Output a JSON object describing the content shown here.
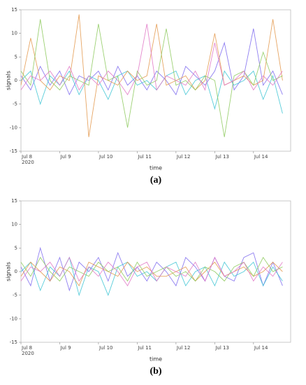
{
  "chart_data": [
    {
      "type": "line",
      "caption": "(a)",
      "xlabel": "time",
      "ylabel": "signals",
      "x": [
        "2020-07-08T00:00",
        "2020-07-08T06:00",
        "2020-07-08T12:00",
        "2020-07-08T18:00",
        "2020-07-09T00:00",
        "2020-07-09T06:00",
        "2020-07-09T12:00",
        "2020-07-09T18:00",
        "2020-07-10T00:00",
        "2020-07-10T06:00",
        "2020-07-10T12:00",
        "2020-07-10T18:00",
        "2020-07-11T00:00",
        "2020-07-11T06:00",
        "2020-07-11T12:00",
        "2020-07-11T18:00",
        "2020-07-12T00:00",
        "2020-07-12T06:00",
        "2020-07-12T12:00",
        "2020-07-12T18:00",
        "2020-07-13T00:00",
        "2020-07-13T06:00",
        "2020-07-13T12:00",
        "2020-07-13T18:00",
        "2020-07-14T00:00",
        "2020-07-14T06:00",
        "2020-07-14T12:00",
        "2020-07-14T18:00"
      ],
      "series": [
        {
          "color": "#7b68ee",
          "values": [
            1,
            -2,
            3,
            -1,
            2,
            -3,
            1,
            0,
            2,
            -2,
            3,
            -1,
            1,
            -2,
            2,
            0,
            -3,
            3,
            1,
            -1,
            2,
            8,
            -2,
            1,
            11,
            -1,
            2,
            -3
          ]
        },
        {
          "color": "#3cc4d4",
          "values": [
            0,
            2,
            -5,
            1,
            -1,
            2,
            -3,
            1,
            0,
            -4,
            1,
            2,
            -1,
            0,
            -2,
            1,
            2,
            -3,
            0,
            1,
            -6,
            2,
            -1,
            0,
            2,
            -4,
            1,
            -7
          ]
        },
        {
          "color": "#e3964a",
          "values": [
            -1,
            9,
            0,
            -2,
            1,
            0,
            14,
            -12,
            1,
            0,
            -1,
            2,
            0,
            1,
            12,
            -1,
            0,
            1,
            -2,
            0,
            10,
            -1,
            0,
            1,
            -1,
            0,
            13,
            0
          ]
        },
        {
          "color": "#8cc95c",
          "values": [
            2,
            -1,
            13,
            0,
            -2,
            1,
            0,
            -1,
            12,
            0,
            1,
            -10,
            2,
            -1,
            0,
            11,
            -1,
            0,
            -2,
            1,
            0,
            -12,
            1,
            2,
            -1,
            6,
            0,
            1
          ]
        },
        {
          "color": "#e074c4",
          "values": [
            -2,
            1,
            0,
            2,
            -1,
            3,
            -2,
            1,
            -1,
            2,
            0,
            -3,
            1,
            12,
            -2,
            1,
            0,
            -1,
            2,
            -2,
            8,
            -1,
            0,
            2,
            -2,
            1,
            -1,
            2
          ]
        }
      ],
      "xlim": [
        "2020-07-08T00:00",
        "2020-07-14T23:00"
      ],
      "xticks": [
        {
          "value": "2020-07-08T00:00",
          "label": "Jul 8"
        },
        {
          "value": "2020-07-09T00:00",
          "label": "Jul 9"
        },
        {
          "value": "2020-07-10T00:00",
          "label": "Jul 10"
        },
        {
          "value": "2020-07-11T00:00",
          "label": "Jul 11"
        },
        {
          "value": "2020-07-12T00:00",
          "label": "Jul 12"
        },
        {
          "value": "2020-07-13T00:00",
          "label": "Jul 13"
        },
        {
          "value": "2020-07-14T00:00",
          "label": "Jul 14"
        }
      ],
      "x_year_label": "2020",
      "ylim": [
        -15,
        15
      ],
      "yticks": [
        -15,
        -10,
        -5,
        0,
        5,
        10,
        15
      ]
    },
    {
      "type": "line",
      "caption": "(b)",
      "xlabel": "time",
      "ylabel": "signals",
      "x": [
        "2020-07-08T00:00",
        "2020-07-08T06:00",
        "2020-07-08T12:00",
        "2020-07-08T18:00",
        "2020-07-09T00:00",
        "2020-07-09T06:00",
        "2020-07-09T12:00",
        "2020-07-09T18:00",
        "2020-07-10T00:00",
        "2020-07-10T06:00",
        "2020-07-10T12:00",
        "2020-07-10T18:00",
        "2020-07-11T00:00",
        "2020-07-11T06:00",
        "2020-07-11T12:00",
        "2020-07-11T18:00",
        "2020-07-12T00:00",
        "2020-07-12T06:00",
        "2020-07-12T12:00",
        "2020-07-12T18:00",
        "2020-07-13T00:00",
        "2020-07-13T06:00",
        "2020-07-13T12:00",
        "2020-07-13T18:00",
        "2020-07-14T00:00",
        "2020-07-14T06:00",
        "2020-07-14T12:00",
        "2020-07-14T18:00"
      ],
      "series": [
        {
          "color": "#7b68ee",
          "values": [
            1,
            -3,
            5,
            -2,
            3,
            -4,
            2,
            0,
            3,
            -2,
            4,
            -1,
            1,
            -2,
            2,
            0,
            -3,
            3,
            1,
            -2,
            3,
            -1,
            -2,
            3,
            4,
            -3,
            2,
            -3
          ]
        },
        {
          "color": "#3cc4d4",
          "values": [
            0,
            2,
            -4,
            1,
            -1,
            3,
            -5,
            1,
            0,
            -5,
            1,
            2,
            -1,
            0,
            -2,
            1,
            2,
            -3,
            0,
            1,
            -3,
            2,
            -1,
            0,
            2,
            -3,
            1,
            -2
          ]
        },
        {
          "color": "#e3964a",
          "values": [
            -1,
            2,
            0,
            -2,
            1,
            0,
            -3,
            2,
            1,
            0,
            -1,
            2,
            0,
            1,
            -1,
            -1,
            0,
            1,
            -2,
            0,
            2,
            -1,
            0,
            1,
            -1,
            0,
            2,
            0
          ]
        },
        {
          "color": "#8cc95c",
          "values": [
            2,
            -1,
            3,
            0,
            -2,
            1,
            0,
            -1,
            2,
            0,
            1,
            -2,
            2,
            -1,
            0,
            1,
            -1,
            0,
            -2,
            1,
            0,
            -2,
            1,
            2,
            -1,
            3,
            0,
            1
          ]
        },
        {
          "color": "#e074c4",
          "values": [
            -2,
            1,
            0,
            2,
            -1,
            3,
            -2,
            1,
            -1,
            2,
            0,
            -3,
            1,
            2,
            -2,
            1,
            0,
            -1,
            2,
            -2,
            3,
            -1,
            0,
            2,
            -2,
            1,
            -1,
            2
          ]
        }
      ],
      "xlim": [
        "2020-07-08T00:00",
        "2020-07-14T23:00"
      ],
      "xticks": [
        {
          "value": "2020-07-08T00:00",
          "label": "Jul 8"
        },
        {
          "value": "2020-07-09T00:00",
          "label": "Jul 9"
        },
        {
          "value": "2020-07-10T00:00",
          "label": "Jul 10"
        },
        {
          "value": "2020-07-11T00:00",
          "label": "Jul 11"
        },
        {
          "value": "2020-07-12T00:00",
          "label": "Jul 12"
        },
        {
          "value": "2020-07-13T00:00",
          "label": "Jul 13"
        },
        {
          "value": "2020-07-14T00:00",
          "label": "Jul 14"
        }
      ],
      "x_year_label": "2020",
      "ylim": [
        -15,
        15
      ],
      "yticks": [
        -15,
        -10,
        -5,
        0,
        5,
        10,
        15
      ]
    }
  ]
}
